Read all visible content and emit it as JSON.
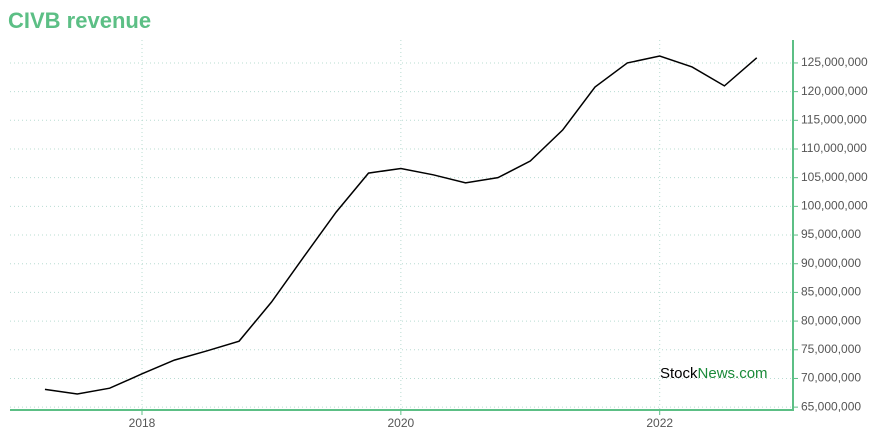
{
  "chart_data": {
    "type": "line",
    "title": "CIVB revenue",
    "x": [
      2017.25,
      2017.5,
      2017.75,
      2018,
      2018.25,
      2018.5,
      2018.75,
      2019,
      2019.25,
      2019.5,
      2019.75,
      2020,
      2020.25,
      2020.5,
      2020.75,
      2021,
      2021.25,
      2021.5,
      2021.75,
      2022,
      2022.25,
      2022.5,
      2022.75
    ],
    "series": [
      {
        "name": "CIVB revenue",
        "color": "#000000",
        "values": [
          68100000,
          67300000,
          68300000,
          70800000,
          73200000,
          74800000,
          76500000,
          83300000,
          91200000,
          99000000,
          105800000,
          106600000,
          105500000,
          104100000,
          105000000,
          107900000,
          113300000,
          120800000,
          125000000,
          126200000,
          124300000,
          121000000,
          125900000
        ]
      }
    ],
    "xlim": [
      2016.98,
      2023.03
    ],
    "xticks": [
      2018,
      2020,
      2022
    ],
    "ylim": [
      64500000,
      129000000
    ],
    "yticks": [
      {
        "value": 65000000,
        "label": "65,000,000"
      },
      {
        "value": 70000000,
        "label": "70,000,000"
      },
      {
        "value": 75000000,
        "label": "75,000,000"
      },
      {
        "value": 80000000,
        "label": "80,000,000"
      },
      {
        "value": 85000000,
        "label": "85,000,000"
      },
      {
        "value": 90000000,
        "label": "90,000,000"
      },
      {
        "value": 95000000,
        "label": "95,000,000"
      },
      {
        "value": 100000000,
        "label": "100,000,000"
      },
      {
        "value": 105000000,
        "label": "105,000,000"
      },
      {
        "value": 110000000,
        "label": "110,000,000"
      },
      {
        "value": 115000000,
        "label": "115,000,000"
      },
      {
        "value": 120000000,
        "label": "120,000,000"
      },
      {
        "value": 125000000,
        "label": "125,000,000"
      }
    ],
    "grid": true,
    "axis_color": "#5cbf85",
    "watermark": [
      "Stock",
      "News.com"
    ]
  }
}
